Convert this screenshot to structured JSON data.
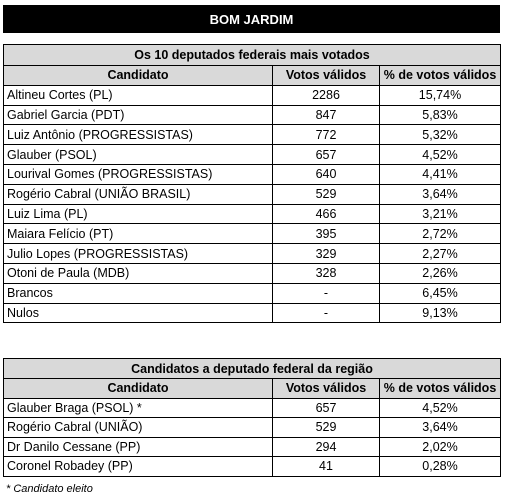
{
  "banner": "BOM JARDIM",
  "table1": {
    "title": "Os 10 deputados federais mais votados",
    "headers": [
      "Candidato",
      "Votos válidos",
      "% de votos válidos"
    ],
    "rows": [
      [
        "Altineu Cortes (PL)",
        "2286",
        "15,74%"
      ],
      [
        "Gabriel Garcia (PDT)",
        "847",
        "5,83%"
      ],
      [
        "Luiz Antônio (PROGRESSISTAS)",
        "772",
        "5,32%"
      ],
      [
        "Glauber (PSOL)",
        "657",
        "4,52%"
      ],
      [
        "Lourival Gomes (PROGRESSISTAS)",
        "640",
        "4,41%"
      ],
      [
        "Rogério Cabral (UNIÃO BRASIL)",
        "529",
        "3,64%"
      ],
      [
        "Luiz Lima (PL)",
        "466",
        "3,21%"
      ],
      [
        "Maiara Felício (PT)",
        "395",
        "2,72%"
      ],
      [
        "Julio Lopes (PROGRESSISTAS)",
        "329",
        "2,27%"
      ],
      [
        "Otoni de Paula (MDB)",
        "328",
        "2,26%"
      ],
      [
        "Brancos",
        "-",
        "6,45%"
      ],
      [
        "Nulos",
        "-",
        "9,13%"
      ]
    ]
  },
  "table2": {
    "title": "Candidatos a deputado federal da região",
    "headers": [
      "Candidato",
      "Votos válidos",
      "% de votos válidos"
    ],
    "rows": [
      [
        "Glauber Braga (PSOL) *",
        "657",
        "4,52%"
      ],
      [
        "Rogério Cabral (UNIÃO)",
        "529",
        "3,64%"
      ],
      [
        "Dr Danilo Cessane (PP)",
        "294",
        "2,02%"
      ],
      [
        "Coronel Robadey (PP)",
        "41",
        "0,28%"
      ]
    ]
  },
  "footnote": "* Candidato eleito"
}
